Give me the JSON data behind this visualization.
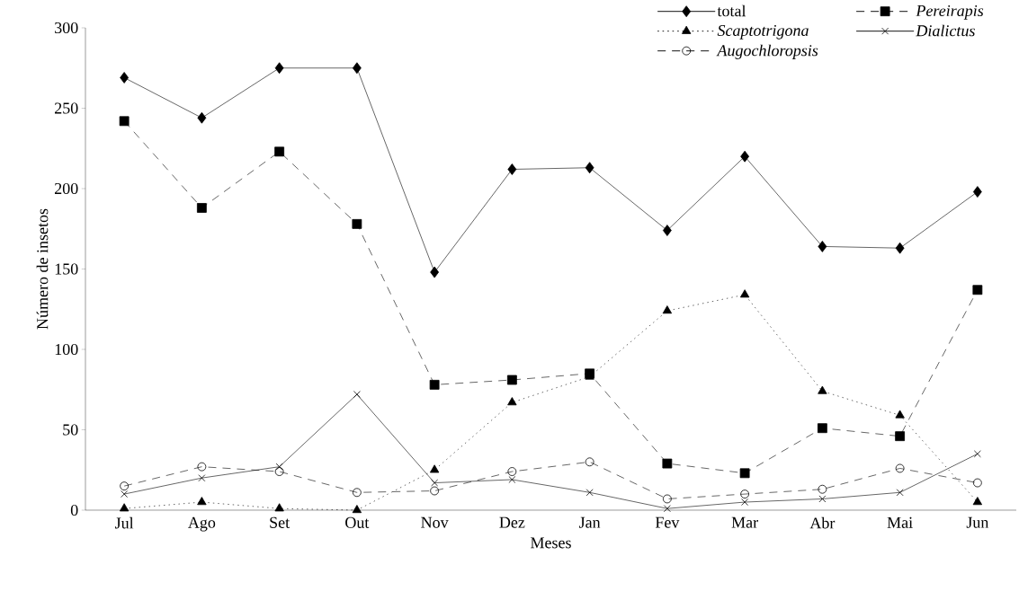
{
  "chart_data": {
    "type": "line",
    "xlabel": "Meses",
    "ylabel": "Número de insetos",
    "categories": [
      "Jul",
      "Ago",
      "Set",
      "Out",
      "Nov",
      "Dez",
      "Jan",
      "Fev",
      "Mar",
      "Abr",
      "Mai",
      "Jun"
    ],
    "series": [
      {
        "name": "total",
        "color": "#000000",
        "marker": "diamond",
        "line_style": "solid",
        "values": [
          269,
          244,
          275,
          275,
          148,
          212,
          213,
          174,
          220,
          164,
          163,
          198
        ]
      },
      {
        "name": "*Pereirapis*",
        "color": "#000000",
        "marker": "square",
        "line_style": "dashed",
        "values": [
          242,
          188,
          223,
          178,
          78,
          81,
          85,
          29,
          23,
          51,
          46,
          137
        ]
      },
      {
        "name": "*Scaptotrigona*",
        "color": "#000000",
        "marker": "triangle",
        "line_style": "dotted",
        "values": [
          1,
          5,
          1,
          0,
          25,
          67,
          83,
          124,
          134,
          74,
          59,
          5
        ]
      },
      {
        "name": "*Dialictus*",
        "color": "#000000",
        "marker": "cross",
        "line_style": "solid",
        "values": [
          10,
          20,
          27,
          72,
          17,
          19,
          11,
          1,
          5,
          7,
          11,
          35
        ]
      },
      {
        "name": "*Augochloropsis*",
        "color": "#000000",
        "marker": "circle",
        "line_style": "dashed",
        "values": [
          15,
          27,
          24,
          11,
          12,
          24,
          30,
          7,
          10,
          13,
          26,
          17
        ]
      }
    ],
    "ylim": [
      0,
      300
    ],
    "yticks": [
      0,
      50,
      100,
      150,
      200,
      250,
      300
    ],
    "grid": false,
    "legend": "top right"
  }
}
